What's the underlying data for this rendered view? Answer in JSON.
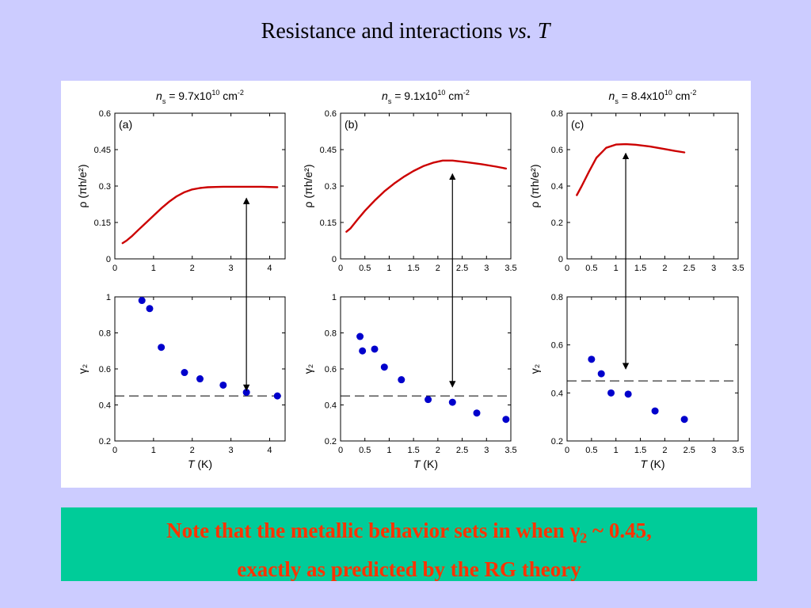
{
  "slide": {
    "title_main": "Resistance and interactions ",
    "title_emph": "vs. T",
    "note_line1_pre": "Note that the metallic behavior sets in when ",
    "note_gamma": "γ",
    "note_sub": "2",
    "note_line1_post": " ~ 0.45,",
    "note_line2": "exactly as predicted by the RG theory",
    "note_color": "#ff3300",
    "note_bg": "#00cc99",
    "bg_color": "#ccccff"
  },
  "chart_data": [
    {
      "type": "line",
      "panel": "(a)",
      "title": {
        "n": "n",
        "s": "s",
        "mid": " = 9.7x10",
        "exp": "10",
        "unit": " cm",
        "unit_exp": "-2"
      },
      "ylabel": "ρ (πh/e²)",
      "xlim": [
        0,
        4.4
      ],
      "ylim": [
        0,
        0.6
      ],
      "xticks": [
        0,
        1,
        2,
        3,
        4
      ],
      "xtick_labels": [
        "0",
        "1",
        "2",
        "3",
        "4"
      ],
      "yticks": [
        0,
        0.15,
        0.3,
        0.45,
        0.6
      ],
      "ytick_labels": [
        "0",
        "0.15",
        "0.3",
        "0.45",
        "0.6"
      ],
      "series": [
        {
          "color": "#cc0000",
          "x": [
            0.2,
            0.3,
            0.45,
            0.6,
            0.8,
            1.0,
            1.2,
            1.4,
            1.6,
            1.8,
            2.0,
            2.2,
            2.4,
            2.6,
            2.8,
            3.0,
            3.4,
            3.8,
            4.2
          ],
          "y": [
            0.065,
            0.075,
            0.095,
            0.118,
            0.148,
            0.178,
            0.208,
            0.235,
            0.258,
            0.275,
            0.286,
            0.292,
            0.295,
            0.296,
            0.297,
            0.297,
            0.297,
            0.297,
            0.295
          ]
        }
      ]
    },
    {
      "type": "scatter",
      "panel": "(a)",
      "xlabel_T": "T",
      "xlabel_unit": " (K)",
      "ylabel": "γ₂",
      "xlim": [
        0,
        4.4
      ],
      "ylim": [
        0.2,
        1.0
      ],
      "xticks": [
        0,
        1,
        2,
        3,
        4
      ],
      "xtick_labels": [
        "0",
        "1",
        "2",
        "3",
        "4"
      ],
      "yticks": [
        0.2,
        0.4,
        0.6,
        0.8,
        1.0
      ],
      "ytick_labels": [
        "0.2",
        "0.4",
        "0.6",
        "0.8",
        "1"
      ],
      "hline": 0.45,
      "series": [
        {
          "color": "#0000cc",
          "x": [
            0.7,
            0.9,
            1.2,
            1.8,
            2.2,
            2.8,
            3.4,
            4.2
          ],
          "y": [
            0.98,
            0.935,
            0.72,
            0.58,
            0.545,
            0.51,
            0.47,
            0.45
          ]
        }
      ]
    },
    {
      "type": "line",
      "panel": "(b)",
      "title": {
        "n": "n",
        "s": "s",
        "mid": " = 9.1x10",
        "exp": "10",
        "unit": " cm",
        "unit_exp": "-2"
      },
      "ylabel": "ρ (πh/e²)",
      "xlim": [
        0,
        3.5
      ],
      "ylim": [
        0,
        0.6
      ],
      "xticks": [
        0,
        0.5,
        1,
        1.5,
        2,
        2.5,
        3,
        3.5
      ],
      "xtick_labels": [
        "0",
        "0.5",
        "1",
        "1.5",
        "2",
        "2.5",
        "3",
        "3.5"
      ],
      "yticks": [
        0,
        0.15,
        0.3,
        0.45,
        0.6
      ],
      "ytick_labels": [
        "0",
        "0.15",
        "0.3",
        "0.45",
        "0.6"
      ],
      "series": [
        {
          "color": "#cc0000",
          "x": [
            0.12,
            0.2,
            0.35,
            0.5,
            0.7,
            0.9,
            1.1,
            1.3,
            1.5,
            1.7,
            1.9,
            2.1,
            2.3,
            2.6,
            2.9,
            3.2,
            3.4
          ],
          "y": [
            0.112,
            0.125,
            0.162,
            0.198,
            0.24,
            0.278,
            0.31,
            0.338,
            0.362,
            0.382,
            0.396,
            0.405,
            0.405,
            0.398,
            0.39,
            0.38,
            0.372
          ]
        }
      ]
    },
    {
      "type": "scatter",
      "panel": "(b)",
      "xlabel_T": "T",
      "xlabel_unit": " (K)",
      "ylabel": "γ₂",
      "xlim": [
        0,
        3.5
      ],
      "ylim": [
        0.2,
        1.0
      ],
      "xticks": [
        0,
        0.5,
        1,
        1.5,
        2,
        2.5,
        3,
        3.5
      ],
      "xtick_labels": [
        "0",
        "0.5",
        "1",
        "1.5",
        "2",
        "2.5",
        "3",
        "3.5"
      ],
      "yticks": [
        0.2,
        0.4,
        0.6,
        0.8,
        1.0
      ],
      "ytick_labels": [
        "0.2",
        "0.4",
        "0.6",
        "0.8",
        "1"
      ],
      "hline": 0.45,
      "series": [
        {
          "color": "#0000cc",
          "x": [
            0.4,
            0.45,
            0.7,
            0.9,
            1.25,
            1.8,
            2.3,
            2.8,
            3.4
          ],
          "y": [
            0.78,
            0.7,
            0.71,
            0.61,
            0.54,
            0.43,
            0.415,
            0.355,
            0.32
          ]
        }
      ]
    },
    {
      "type": "line",
      "panel": "(c)",
      "title": {
        "n": "n",
        "s": "s",
        "mid": " = 8.4x10",
        "exp": "10",
        "unit": " cm",
        "unit_exp": "-2"
      },
      "ylabel": "ρ (πh/e²)",
      "xlim": [
        0,
        3.5
      ],
      "ylim": [
        0,
        0.8
      ],
      "xticks": [
        0,
        0.5,
        1,
        1.5,
        2,
        2.5,
        3,
        3.5
      ],
      "xtick_labels": [
        "0",
        "0.5",
        "1",
        "1.5",
        "2",
        "2.5",
        "3",
        "3.5"
      ],
      "yticks": [
        0,
        0.2,
        0.4,
        0.6,
        0.8
      ],
      "ytick_labels": [
        "0",
        "0.2",
        "0.4",
        "0.6",
        "0.8"
      ],
      "series": [
        {
          "color": "#cc0000",
          "x": [
            0.2,
            0.3,
            0.45,
            0.6,
            0.8,
            1.0,
            1.2,
            1.4,
            1.7,
            2.0,
            2.2,
            2.4
          ],
          "y": [
            0.35,
            0.4,
            0.48,
            0.555,
            0.61,
            0.628,
            0.63,
            0.627,
            0.617,
            0.603,
            0.593,
            0.585
          ]
        }
      ]
    },
    {
      "type": "scatter",
      "panel": "(c)",
      "xlabel_T": "T",
      "xlabel_unit": " (K)",
      "ylabel": "γ₂",
      "xlim": [
        0,
        3.5
      ],
      "ylim": [
        0.2,
        0.8
      ],
      "xticks": [
        0,
        0.5,
        1,
        1.5,
        2,
        2.5,
        3,
        3.5
      ],
      "xtick_labels": [
        "0",
        "0.5",
        "1",
        "1.5",
        "2",
        "2.5",
        "3",
        "3.5"
      ],
      "yticks": [
        0.2,
        0.4,
        0.6,
        0.8
      ],
      "ytick_labels": [
        "0.2",
        "0.4",
        "0.6",
        "0.8"
      ],
      "hline": 0.45,
      "series": [
        {
          "color": "#0000cc",
          "x": [
            0.5,
            0.7,
            0.9,
            1.25,
            1.8,
            2.4
          ],
          "y": [
            0.54,
            0.48,
            0.4,
            0.395,
            0.325,
            0.29
          ]
        }
      ]
    }
  ],
  "arrows": [
    {
      "chart_top": 0,
      "chart_bottom": 1,
      "x": 3.4,
      "y_top": 0.25,
      "y_bottom": 0.48
    },
    {
      "chart_top": 2,
      "chart_bottom": 3,
      "x": 2.3,
      "y_top": 0.35,
      "y_bottom": 0.5
    },
    {
      "chart_top": 4,
      "chart_bottom": 5,
      "x": 1.2,
      "y_top": 0.58,
      "y_bottom": 0.5
    }
  ]
}
